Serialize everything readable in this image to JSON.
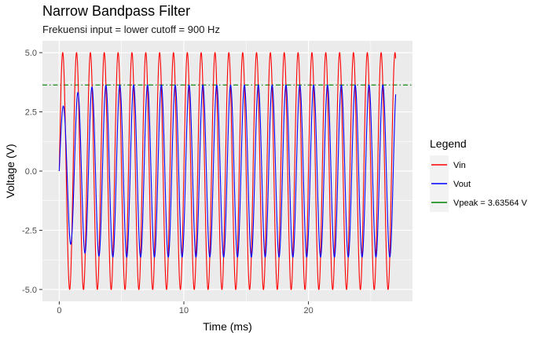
{
  "chart_data": {
    "type": "line",
    "title": "Narrow Bandpass Filter",
    "subtitle": "Frekuensi input = lower cutoff = 900 Hz",
    "xlabel": "Time (ms)",
    "ylabel": "Voltage (V)",
    "xlim": [
      -1.35,
      28.35
    ],
    "ylim": [
      -5.5,
      5.5
    ],
    "x_ticks": [
      0,
      10,
      20
    ],
    "y_ticks": [
      -5.0,
      -2.5,
      0.0,
      2.5,
      5.0
    ],
    "x_tick_labels": [
      "0",
      "10",
      "20"
    ],
    "y_tick_labels": [
      "-5.0",
      "-2.5",
      "0.0",
      "2.5",
      "5.0"
    ],
    "grid": true,
    "legend_title": "Legend",
    "legend_position": "right",
    "frequency_hz": 900,
    "duration_ms": 27,
    "series": [
      {
        "name": "Vin",
        "color": "#ff0000",
        "amplitude": 5.0,
        "kind": "input sine"
      },
      {
        "name": "Vout",
        "color": "#0000ff",
        "amplitude": 3.63564,
        "kind": "filtered output with ringing transient"
      },
      {
        "name": "Vpeak =  3.63564  V",
        "color": "#008000",
        "value": 3.63564,
        "kind": "horizontal reference",
        "linestyle": "dotdash"
      }
    ]
  }
}
